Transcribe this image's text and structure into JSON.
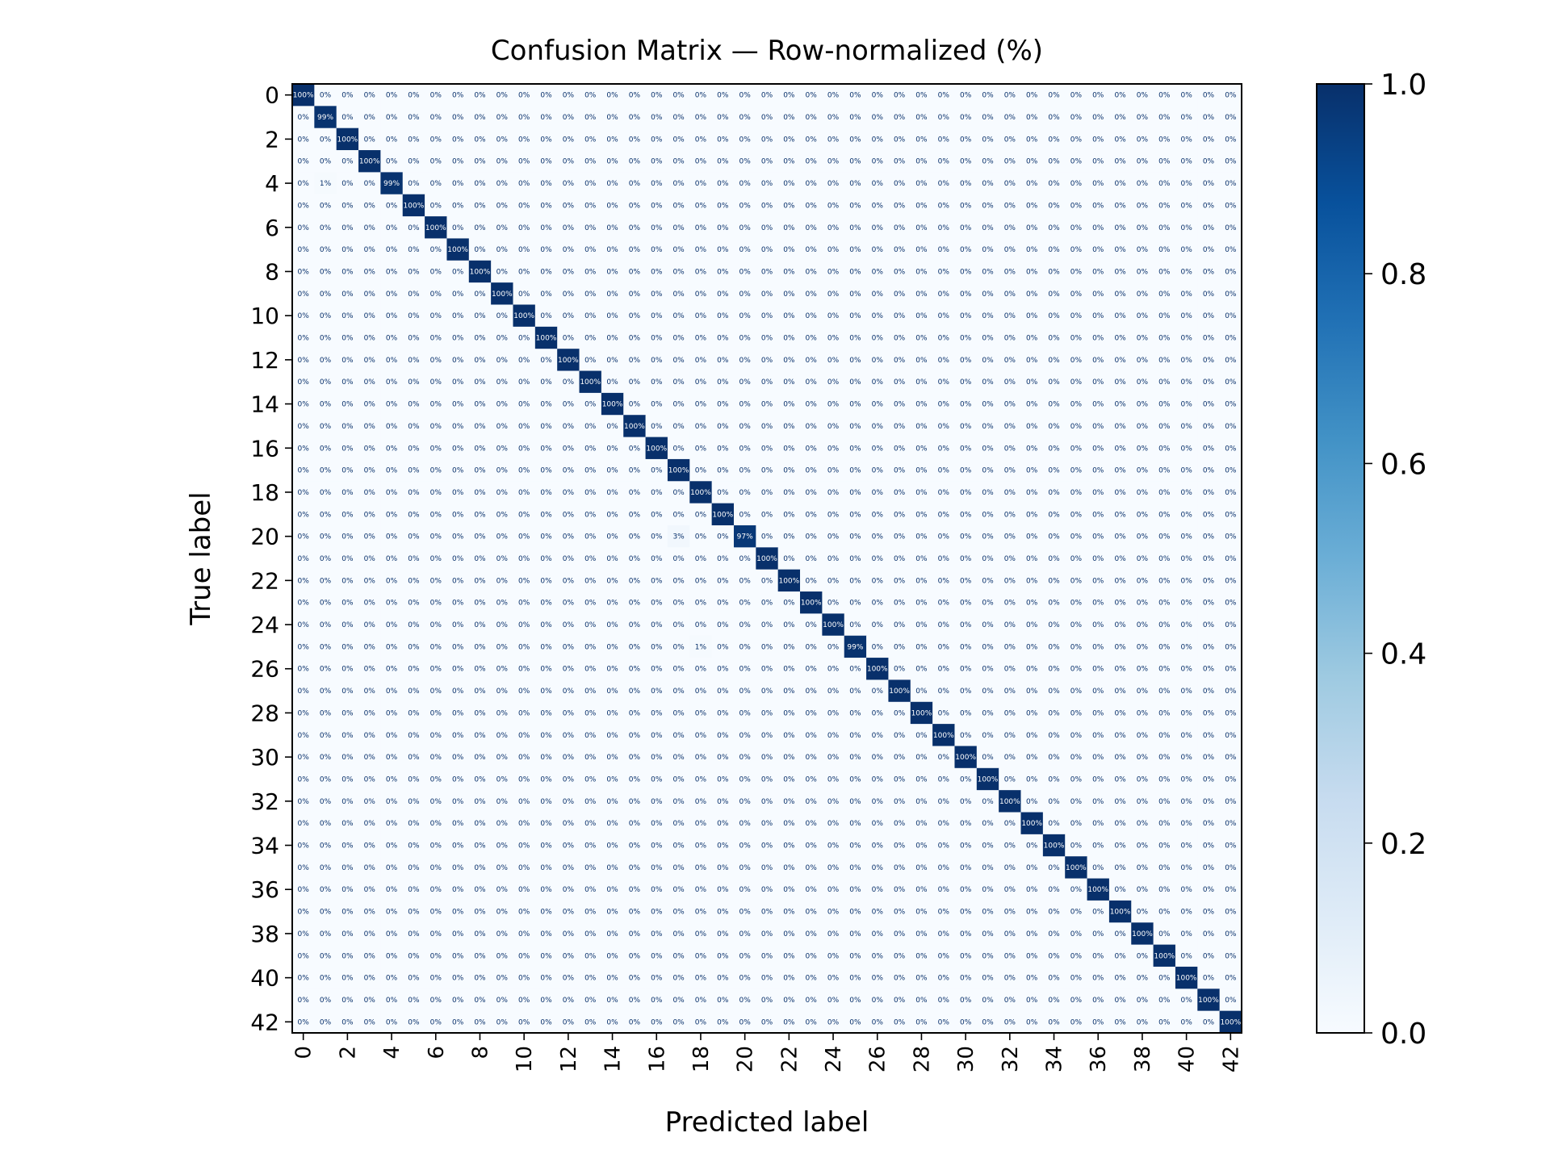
{
  "chart_data": {
    "type": "heatmap",
    "title": "Confusion Matrix — Row-normalized (%)",
    "xlabel": "Predicted label",
    "ylabel": "True label",
    "n_classes": 43,
    "x_ticks": [
      "0",
      "2",
      "4",
      "6",
      "8",
      "10",
      "12",
      "14",
      "16",
      "18",
      "20",
      "22",
      "24",
      "26",
      "28",
      "30",
      "32",
      "34",
      "36",
      "38",
      "40",
      "42"
    ],
    "y_ticks": [
      "0",
      "2",
      "4",
      "6",
      "8",
      "10",
      "12",
      "14",
      "16",
      "18",
      "20",
      "22",
      "24",
      "26",
      "28",
      "30",
      "32",
      "34",
      "36",
      "38",
      "40",
      "42"
    ],
    "colorbar": {
      "range": [
        0.0,
        1.0
      ],
      "ticks": [
        "0.0",
        "0.2",
        "0.4",
        "0.6",
        "0.8",
        "1.0"
      ],
      "colormap": "Blues",
      "colors": [
        "#f7fbff",
        "#deebf7",
        "#c6dbef",
        "#9ecae1",
        "#6baed6",
        "#4292c6",
        "#2171b5",
        "#08519c",
        "#08306b"
      ]
    },
    "diagonal_default": 1.0,
    "off_diagonal_default": 0.0,
    "cell_overrides": [
      {
        "row": 1,
        "col": 1,
        "value": 0.99
      },
      {
        "row": 4,
        "col": 1,
        "value": 0.01
      },
      {
        "row": 4,
        "col": 4,
        "value": 0.99
      },
      {
        "row": 20,
        "col": 17,
        "value": 0.03
      },
      {
        "row": 20,
        "col": 20,
        "value": 0.97
      },
      {
        "row": 25,
        "col": 18,
        "value": 0.01
      },
      {
        "row": 25,
        "col": 25,
        "value": 0.99
      }
    ],
    "grid": false
  }
}
